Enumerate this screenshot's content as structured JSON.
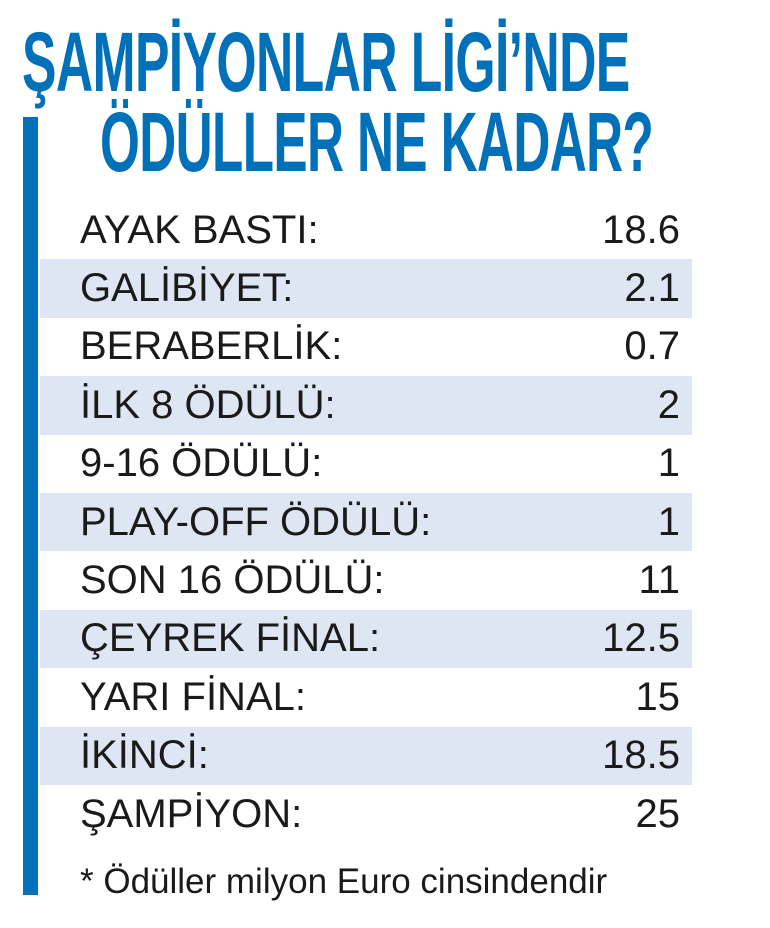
{
  "title": {
    "line1": "ŞAMPİYONLAR LİGİ’NDE",
    "line2": "ÖDÜLLER NE KADAR?"
  },
  "accent_color": "#0070b8",
  "stripe_color": "#dde6f2",
  "rows": [
    {
      "label": "AYAK BASTI:",
      "value": "18.6"
    },
    {
      "label": "GALİBİYET:",
      "value": "2.1"
    },
    {
      "label": "BERABERLİK:",
      "value": "0.7"
    },
    {
      "label": "İLK 8 ÖDÜLÜ:",
      "value": "2"
    },
    {
      "label": "9-16 ÖDÜLÜ:",
      "value": "1"
    },
    {
      "label": "PLAY-OFF ÖDÜLÜ:",
      "value": "1"
    },
    {
      "label": "SON 16 ÖDÜLÜ:",
      "value": "11"
    },
    {
      "label": "ÇEYREK FİNAL:",
      "value": "12.5"
    },
    {
      "label": "YARI FİNAL:",
      "value": "15"
    },
    {
      "label": "İKİNCİ:",
      "value": "18.5"
    },
    {
      "label": "ŞAMPİYON:",
      "value": "25"
    }
  ],
  "footnote": "* Ödüller milyon Euro cinsindendir"
}
